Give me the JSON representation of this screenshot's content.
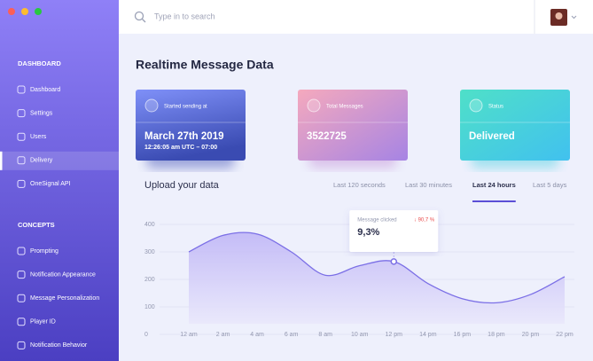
{
  "search": {
    "placeholder": "Type in to search"
  },
  "sidebar": {
    "sections": [
      {
        "title": "DASHBOARD",
        "items": [
          "Dashboard",
          "Settings",
          "Users",
          "Delivery",
          "OneSignal API"
        ],
        "active": 3
      },
      {
        "title": "CONCEPTS",
        "items": [
          "Prompting",
          "Notification Appearance",
          "Message Personalization",
          "Player ID",
          "Notification Behavior"
        ]
      }
    ]
  },
  "page_title": "Realtime Message Data",
  "cards": [
    {
      "label": "Started sending at",
      "value": "March 27th 2019",
      "sub": "12:26:05 am UTC – 07:00"
    },
    {
      "label": "Total Messages",
      "value": "3522725"
    },
    {
      "label": "Status",
      "value": "Delivered"
    }
  ],
  "upload": {
    "title": "Upload your data",
    "tabs": [
      "Last 120 seconds",
      "Last 30 minutes",
      "Last 24 hours",
      "Last 5 days"
    ],
    "active": 2
  },
  "tooltip": {
    "label": "Message clicked",
    "change": "↓ 90,7 %",
    "value": "9,3%"
  },
  "chart_data": {
    "type": "area",
    "categories": [
      "12 am",
      "2 am",
      "4 am",
      "6 am",
      "8 am",
      "10 am",
      "12 pm",
      "14 pm",
      "16 pm",
      "18 pm",
      "20 pm",
      "22 pm"
    ],
    "values": [
      300,
      360,
      365,
      300,
      215,
      250,
      265,
      185,
      130,
      115,
      145,
      210
    ],
    "color": "#7b6fe6",
    "ylim": [
      0,
      400
    ],
    "yticks": [
      0,
      100,
      200,
      300,
      400
    ],
    "grid": true
  }
}
